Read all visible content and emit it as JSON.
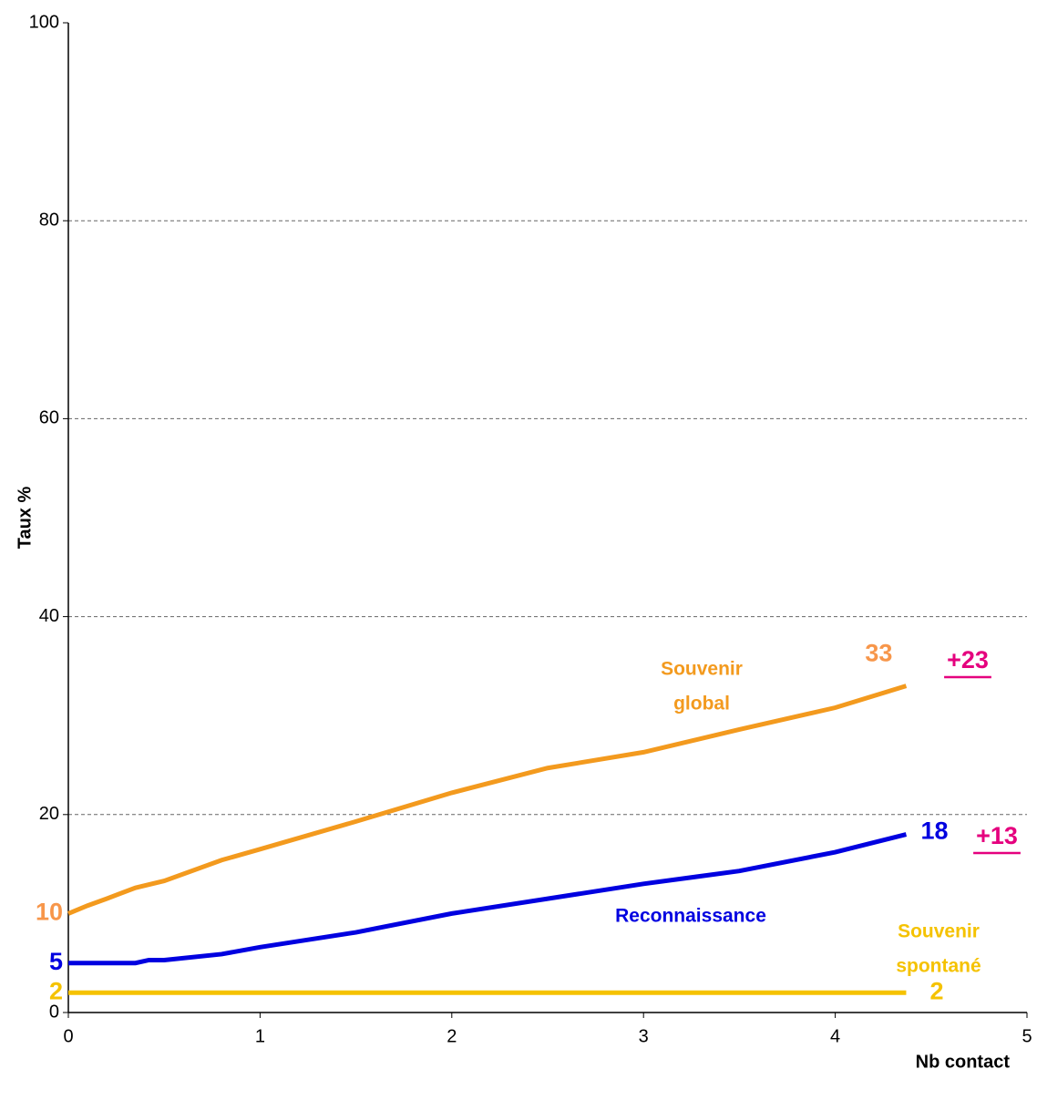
{
  "chart_data": {
    "type": "line",
    "x_label": "Nb contact",
    "y_label": "Taux %",
    "xlim": [
      0,
      5
    ],
    "xticks": [
      0,
      1,
      2,
      3,
      4,
      5
    ],
    "ylim": [
      0,
      100
    ],
    "yticks": [
      0,
      20,
      40,
      60,
      80,
      100
    ],
    "grid": true,
    "series": [
      {
        "name": "Souvenir global",
        "color": "#f39a1e",
        "label_color": "#f7964a",
        "x": [
          0,
          0.1,
          0.2,
          0.35,
          0.5,
          0.8,
          1,
          1.5,
          2,
          2.5,
          3,
          3.5,
          4,
          4.37
        ],
        "values": [
          10,
          10.8,
          11.5,
          12.6,
          13.3,
          15.4,
          16.5,
          19.3,
          22.2,
          24.7,
          26.3,
          28.6,
          30.8,
          33
        ]
      },
      {
        "name": "Reconnaissance",
        "color": "#0000e0",
        "label_color": "#0000e0",
        "x": [
          0,
          0.35,
          0.42,
          0.5,
          0.8,
          1,
          1.5,
          2,
          2.5,
          3,
          3.5,
          4,
          4.37
        ],
        "values": [
          5,
          5,
          5.3,
          5.3,
          5.9,
          6.6,
          8.1,
          10,
          11.5,
          13,
          14.3,
          16.2,
          18
        ]
      },
      {
        "name": "Souvenir spontané",
        "color": "#f5c200",
        "label_color": "#f5c200",
        "x": [
          0,
          4.37
        ],
        "values": [
          2,
          2
        ]
      }
    ],
    "annotations": [
      {
        "lines": [
          "Souvenir",
          "global"
        ],
        "color": "#f39a1e"
      },
      {
        "lines": [
          "Reconnaissance"
        ],
        "color": "#0000e0"
      },
      {
        "lines": [
          "Souvenir",
          "spontané"
        ],
        "color": "#f5c200"
      },
      {
        "lines": [
          "+23"
        ],
        "color": "#e5007e",
        "underline": true
      },
      {
        "lines": [
          "+13"
        ],
        "color": "#e5007e",
        "underline": true
      }
    ]
  }
}
